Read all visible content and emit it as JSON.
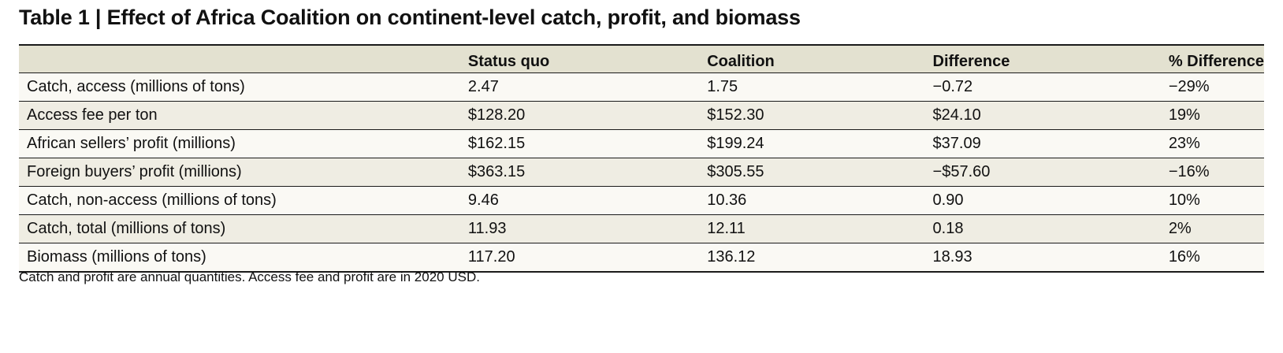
{
  "title": "Table 1 | Effect of Africa Coalition on continent-level catch, profit, and biomass",
  "table": {
    "headers": [
      "",
      "Status quo",
      "Coalition",
      "Difference",
      "% Difference"
    ],
    "rows": [
      [
        "Catch, access (millions of tons)",
        "2.47",
        "1.75",
        "−0.72",
        "−29%"
      ],
      [
        "Access fee per ton",
        "$128.20",
        "$152.30",
        "$24.10",
        "19%"
      ],
      [
        "African sellers’ profit (millions)",
        "$162.15",
        "$199.24",
        "$37.09",
        "23%"
      ],
      [
        "Foreign buyers’ profit (millions)",
        "$363.15",
        "$305.55",
        "−$57.60",
        "−16%"
      ],
      [
        "Catch, non-access (millions of tons)",
        "9.46",
        "10.36",
        "0.90",
        "10%"
      ],
      [
        "Catch, total (millions of tons)",
        "11.93",
        "12.11",
        "0.18",
        "2%"
      ],
      [
        "Biomass (millions of tons)",
        "117.20",
        "136.12",
        "18.93",
        "16%"
      ]
    ]
  },
  "footnote": "Catch and profit are annual quantities. Access fee and profit are in 2020 USD.",
  "colors": {
    "header_bg": "#e3e1d0",
    "row_light": "#faf9f4",
    "row_dark": "#efede3",
    "rule": "#1a1a1a"
  }
}
